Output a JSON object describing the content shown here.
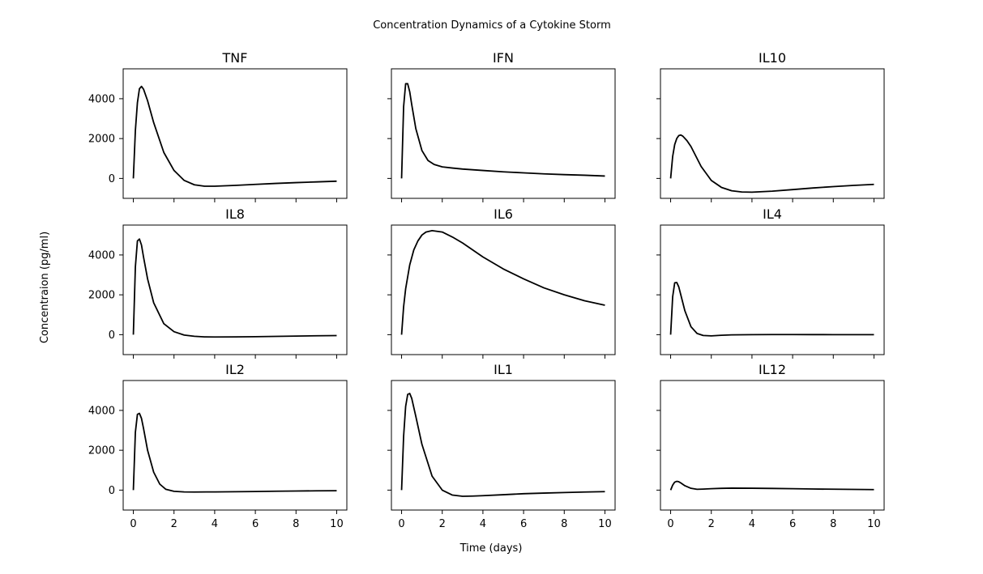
{
  "figure": {
    "title": "Concentration Dynamics of a Cytokine Storm",
    "xlabel": "Time (days)",
    "ylabel": "Concentraion (pg/ml)"
  },
  "chart_data": {
    "type": "line",
    "layout": "3x3 grid, shared x and y axes",
    "line_color": "#000000",
    "xlim": [
      -0.5,
      10.5
    ],
    "ylim": [
      -1000,
      5500
    ],
    "x_ticks": [
      0,
      2,
      4,
      6,
      8,
      10
    ],
    "y_ticks": [
      0,
      2000,
      4000
    ],
    "legend": "none",
    "grid": false,
    "panels": [
      {
        "title": "TNF",
        "x": [
          0,
          0.1,
          0.2,
          0.3,
          0.4,
          0.5,
          0.7,
          1,
          1.5,
          2,
          2.5,
          3,
          3.5,
          4,
          5,
          6,
          7,
          8,
          9,
          10
        ],
        "y": [
          0,
          2400,
          3800,
          4500,
          4620,
          4480,
          3900,
          2800,
          1300,
          400,
          -100,
          -320,
          -390,
          -390,
          -350,
          -300,
          -250,
          -210,
          -175,
          -140
        ]
      },
      {
        "title": "IFN",
        "x": [
          0,
          0.1,
          0.2,
          0.3,
          0.4,
          0.5,
          0.7,
          1,
          1.3,
          1.6,
          2,
          2.5,
          3,
          4,
          5,
          6,
          7,
          8,
          9,
          10
        ],
        "y": [
          0,
          3600,
          4750,
          4750,
          4350,
          3700,
          2500,
          1400,
          900,
          700,
          580,
          520,
          470,
          400,
          330,
          280,
          230,
          190,
          160,
          120
        ]
      },
      {
        "title": "IL10",
        "x": [
          0,
          0.1,
          0.2,
          0.3,
          0.4,
          0.5,
          0.6,
          0.8,
          1,
          1.5,
          2,
          2.5,
          3,
          3.5,
          4,
          5,
          6,
          7,
          8,
          9,
          10
        ],
        "y": [
          0,
          1100,
          1700,
          2000,
          2150,
          2180,
          2120,
          1900,
          1600,
          600,
          -100,
          -450,
          -620,
          -680,
          -690,
          -640,
          -560,
          -480,
          -410,
          -350,
          -300
        ]
      },
      {
        "title": "IL8",
        "x": [
          0,
          0.1,
          0.2,
          0.3,
          0.4,
          0.5,
          0.7,
          1,
          1.5,
          2,
          2.5,
          3,
          3.5,
          4,
          5,
          6,
          7,
          8,
          9,
          10
        ],
        "y": [
          0,
          3400,
          4700,
          4800,
          4500,
          3900,
          2800,
          1600,
          550,
          150,
          -20,
          -80,
          -110,
          -115,
          -110,
          -100,
          -85,
          -70,
          -55,
          -45
        ]
      },
      {
        "title": "IL6",
        "x": [
          0,
          0.1,
          0.2,
          0.4,
          0.6,
          0.8,
          1,
          1.2,
          1.5,
          2,
          2.5,
          3,
          4,
          5,
          6,
          7,
          8,
          9,
          10
        ],
        "y": [
          0,
          1400,
          2300,
          3500,
          4250,
          4700,
          5000,
          5150,
          5220,
          5150,
          4900,
          4600,
          3900,
          3300,
          2800,
          2350,
          2000,
          1700,
          1480
        ]
      },
      {
        "title": "IL4",
        "x": [
          0,
          0.1,
          0.2,
          0.3,
          0.4,
          0.5,
          0.7,
          1,
          1.3,
          1.6,
          2,
          2.5,
          3,
          4,
          5,
          6,
          7,
          8,
          9,
          10
        ],
        "y": [
          0,
          1900,
          2600,
          2620,
          2400,
          2000,
          1200,
          400,
          60,
          -40,
          -60,
          -30,
          -10,
          0,
          5,
          5,
          3,
          2,
          0,
          0
        ]
      },
      {
        "title": "IL2",
        "x": [
          0,
          0.1,
          0.2,
          0.3,
          0.4,
          0.5,
          0.7,
          1,
          1.3,
          1.6,
          2,
          2.5,
          3,
          4,
          5,
          6,
          7,
          8,
          9,
          10
        ],
        "y": [
          0,
          2900,
          3800,
          3850,
          3600,
          3100,
          2000,
          900,
          300,
          40,
          -60,
          -90,
          -95,
          -90,
          -80,
          -70,
          -55,
          -45,
          -35,
          -30
        ]
      },
      {
        "title": "IL1",
        "x": [
          0,
          0.1,
          0.2,
          0.3,
          0.4,
          0.5,
          0.7,
          1,
          1.5,
          2,
          2.5,
          3,
          3.5,
          4,
          5,
          6,
          7,
          8,
          9,
          10
        ],
        "y": [
          0,
          2700,
          4200,
          4800,
          4850,
          4600,
          3700,
          2300,
          700,
          0,
          -250,
          -310,
          -300,
          -280,
          -230,
          -180,
          -150,
          -120,
          -95,
          -75
        ]
      },
      {
        "title": "IL12",
        "x": [
          0,
          0.1,
          0.2,
          0.3,
          0.4,
          0.5,
          0.7,
          1,
          1.3,
          1.6,
          2,
          2.5,
          3,
          4,
          5,
          6,
          7,
          8,
          9,
          10
        ],
        "y": [
          0,
          250,
          400,
          440,
          420,
          360,
          220,
          90,
          40,
          50,
          70,
          90,
          100,
          95,
          85,
          70,
          55,
          45,
          35,
          25
        ]
      }
    ]
  }
}
